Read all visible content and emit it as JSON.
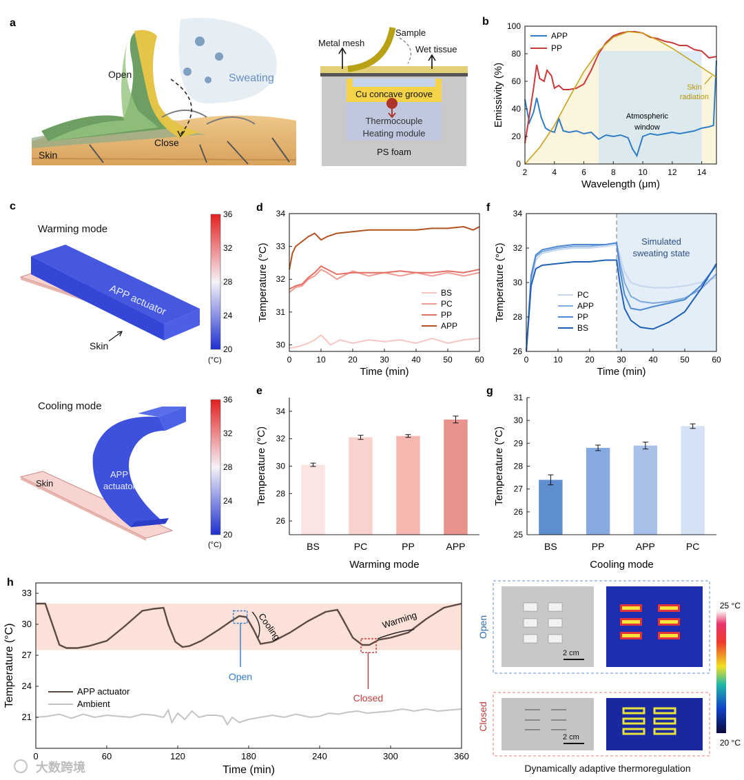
{
  "panel_letters": [
    "a",
    "b",
    "c",
    "d",
    "e",
    "f",
    "g",
    "h"
  ],
  "panel_a": {
    "left": {
      "open": "Open",
      "close": "Close",
      "skin": "Skin",
      "sweating": "Sweating"
    },
    "right": {
      "metal_mesh": "Metal mesh",
      "sample": "Sample",
      "wet_tissue": "Wet tissue",
      "groove": "Cu concave groove",
      "thermocouple": "Thermocouple",
      "heating": "Heating module",
      "foam": "PS foam"
    }
  },
  "panel_c": {
    "warming_title": "Warming mode",
    "cooling_title": "Cooling mode",
    "actuator_label": "APP actuator",
    "actuator_line1": "APP",
    "actuator_line2": "actuator",
    "skin": "Skin",
    "colorbar_ticks": [
      "36",
      "32",
      "28",
      "24",
      "20"
    ],
    "colorbar_unit": "(°C)"
  },
  "panel_h_photos": {
    "open": "Open",
    "closed": "Closed",
    "scale": "2 cm",
    "ir_max": "25 °C",
    "ir_min": "20 °C",
    "caption": "Dynamically adaptive thermoregulation"
  },
  "watermark": "大数跨境",
  "colors": {
    "app_blue": "#2f7cc6",
    "pp_red": "#c9393c",
    "skin_gold": "#c8a21a",
    "bs": "#f7c6c1",
    "pc": "#f09a92",
    "pp": "#e46f63",
    "app": "#b2501f",
    "h_actuator": "#5b4a43",
    "h_ambient": "#c4c4c4",
    "h_band": "#fbe1d8"
  },
  "chart_data": [
    {
      "id": "b",
      "type": "line",
      "xlabel": "Wavelength (μm)",
      "ylabel": "Emissivity (%)",
      "xlim": [
        2,
        15
      ],
      "ylim": [
        0,
        100
      ],
      "xticks": [
        2,
        4,
        6,
        8,
        10,
        12,
        14
      ],
      "yticks": [
        0,
        20,
        40,
        60,
        80,
        100
      ],
      "annotations": {
        "window": "Atmospheric window",
        "skin_line1": "Skin",
        "skin_line2": "radiation"
      },
      "legend": "top-left",
      "series": [
        {
          "name": "APP",
          "color": "#2f7cc6",
          "x": [
            2,
            2.3,
            2.6,
            2.8,
            3.1,
            3.4,
            3.7,
            4.0,
            4.3,
            4.6,
            5,
            5.5,
            6,
            6.5,
            7,
            7.5,
            8,
            8.5,
            9,
            9.3,
            9.6,
            10,
            10.5,
            11,
            11.5,
            12,
            12.5,
            13,
            13.5,
            14,
            14.5,
            14.8,
            15
          ],
          "y": [
            47,
            30,
            38,
            48,
            34,
            26,
            24,
            23,
            33,
            24,
            23,
            24,
            22,
            23,
            18,
            21,
            20,
            21,
            19,
            11,
            6,
            20,
            22,
            21,
            22,
            23,
            22,
            23,
            24,
            26,
            27,
            28,
            75
          ]
        },
        {
          "name": "PP",
          "color": "#c9393c",
          "x": [
            2,
            2.3,
            2.6,
            2.8,
            3.0,
            3.3,
            3.5,
            3.8,
            4.0,
            4.3,
            4.6,
            5,
            5.5,
            6,
            6.5,
            7,
            7.5,
            8,
            8.5,
            9,
            9.5,
            10,
            10.5,
            11,
            11.5,
            12,
            12.5,
            13,
            13.5,
            14,
            14.5,
            15
          ],
          "y": [
            15,
            35,
            56,
            72,
            62,
            60,
            68,
            64,
            55,
            57,
            54,
            54,
            55,
            58,
            68,
            80,
            88,
            93,
            95,
            96,
            96,
            95,
            92,
            91,
            89,
            88,
            86,
            86,
            83,
            82,
            77,
            78
          ]
        },
        {
          "name": "Skin radiation",
          "color": "#c8a21a",
          "x": [
            2,
            3,
            4,
            5,
            6,
            7,
            8,
            9,
            10,
            11,
            12,
            13,
            14,
            15
          ],
          "y": [
            0,
            12,
            28,
            48,
            67,
            82,
            92,
            96,
            95,
            90,
            84,
            77,
            70,
            63
          ]
        }
      ]
    },
    {
      "id": "d",
      "type": "line",
      "xlabel": "Time (min)",
      "ylabel": "Temperature (°C)",
      "xlim": [
        0,
        60
      ],
      "ylim": [
        29.8,
        34
      ],
      "xticks": [
        0,
        10,
        20,
        30,
        40,
        50,
        60
      ],
      "yticks": [
        30,
        31,
        32,
        33,
        34
      ],
      "legend": "bottom-right",
      "series": [
        {
          "name": "BS",
          "color": "#f7c6c1",
          "x": [
            0,
            3,
            6,
            8,
            10,
            13,
            16,
            20,
            25,
            30,
            35,
            40,
            45,
            50,
            55,
            60
          ],
          "y": [
            29.9,
            29.95,
            30.05,
            30.15,
            30.3,
            30.0,
            30.15,
            30.05,
            30.15,
            30.1,
            30.15,
            30.05,
            30.2,
            30.05,
            30.15,
            30.2
          ]
        },
        {
          "name": "PC",
          "color": "#f09a92",
          "x": [
            0,
            2,
            4,
            6,
            8,
            10,
            12,
            15,
            20,
            25,
            30,
            35,
            40,
            45,
            50,
            55,
            60
          ],
          "y": [
            31.6,
            31.75,
            31.8,
            32.0,
            32.1,
            32.3,
            32.2,
            32.0,
            32.25,
            32.1,
            32.2,
            32.1,
            32.2,
            32.1,
            32.2,
            32.1,
            32.2
          ]
        },
        {
          "name": "PP",
          "color": "#e46f63",
          "x": [
            0,
            2,
            4,
            6,
            8,
            10,
            12,
            15,
            20,
            25,
            30,
            35,
            40,
            45,
            50,
            55,
            60
          ],
          "y": [
            31.7,
            31.8,
            31.85,
            32.05,
            32.2,
            32.4,
            32.3,
            32.15,
            32.2,
            32.2,
            32.2,
            32.25,
            32.2,
            32.2,
            32.25,
            32.2,
            32.3
          ]
        },
        {
          "name": "APP",
          "color": "#b2501f",
          "x": [
            0,
            1,
            2,
            4,
            6,
            8,
            10,
            12,
            15,
            20,
            25,
            30,
            35,
            40,
            45,
            50,
            55,
            58,
            60
          ],
          "y": [
            32.3,
            32.8,
            33.0,
            33.15,
            33.3,
            33.4,
            33.2,
            33.3,
            33.4,
            33.45,
            33.5,
            33.5,
            33.5,
            33.5,
            33.55,
            33.55,
            33.6,
            33.5,
            33.6
          ]
        }
      ]
    },
    {
      "id": "e",
      "type": "bar",
      "xlabel": "Warming mode",
      "ylabel": "Temperature (°C)",
      "ylim": [
        25,
        35
      ],
      "yticks": [
        26,
        28,
        30,
        32,
        34
      ],
      "categories": [
        "BS",
        "PC",
        "PP",
        "APP"
      ],
      "values": [
        30.1,
        32.1,
        32.2,
        33.4
      ],
      "errors": [
        0.12,
        0.15,
        0.1,
        0.25
      ],
      "colors": [
        "#fbe5e3",
        "#fad2cd",
        "#f6b7b0",
        "#e8938c"
      ]
    },
    {
      "id": "f",
      "type": "line",
      "xlabel": "Time (min)",
      "ylabel": "Temperature (°C)",
      "xlim": [
        0,
        60
      ],
      "ylim": [
        26,
        34
      ],
      "xticks": [
        0,
        10,
        20,
        30,
        40,
        50,
        60
      ],
      "yticks": [
        26,
        28,
        30,
        32,
        34
      ],
      "annotations": {
        "state_line1": "Simulated",
        "state_line2": "sweating state",
        "switch_x": 28.5
      },
      "legend": "bottom-left",
      "series": [
        {
          "name": "PC",
          "color": "#c5d7ef",
          "x": [
            0,
            0.8,
            1.5,
            3,
            5,
            10,
            15,
            20,
            25,
            28.5,
            29.5,
            31,
            33,
            36,
            40,
            45,
            50,
            55,
            60
          ],
          "y": [
            26,
            28,
            30,
            31.3,
            31.7,
            31.9,
            32.0,
            32.0,
            32.1,
            32.2,
            31.6,
            30.6,
            30.0,
            29.8,
            29.7,
            29.7,
            29.8,
            30.0,
            30.3
          ]
        },
        {
          "name": "APP",
          "color": "#7fa8dd",
          "x": [
            0,
            0.8,
            1.5,
            3,
            5,
            10,
            15,
            20,
            25,
            28.5,
            29.5,
            31,
            33,
            36,
            40,
            45,
            50,
            55,
            60
          ],
          "y": [
            26,
            28.2,
            30.2,
            31.5,
            31.8,
            32.0,
            32.1,
            32.1,
            32.2,
            32.3,
            31.2,
            30.0,
            29.2,
            28.9,
            28.8,
            28.9,
            29.1,
            29.6,
            30.5
          ]
        },
        {
          "name": "PP",
          "color": "#4d88d2",
          "x": [
            0,
            0.8,
            1.5,
            3,
            5,
            10,
            15,
            20,
            25,
            28.5,
            29.5,
            31,
            33,
            36,
            40,
            45,
            50,
            55,
            60
          ],
          "y": [
            26,
            28.3,
            30.4,
            31.6,
            31.9,
            32.1,
            32.2,
            32.2,
            32.2,
            32.3,
            30.8,
            29.3,
            28.5,
            28.4,
            28.6,
            28.8,
            29.0,
            29.8,
            31.0
          ]
        },
        {
          "name": "BS",
          "color": "#1f5fb5",
          "x": [
            0,
            0.8,
            1.5,
            3,
            5,
            10,
            15,
            20,
            25,
            28.5,
            29.5,
            31,
            33,
            36,
            40,
            45,
            50,
            55,
            60
          ],
          "y": [
            26,
            28,
            29.8,
            30.8,
            31.0,
            31.1,
            31.2,
            31.2,
            31.3,
            31.3,
            30.0,
            28.5,
            27.8,
            27.4,
            27.3,
            27.7,
            28.3,
            29.6,
            31.1
          ]
        }
      ]
    },
    {
      "id": "g",
      "type": "bar",
      "xlabel": "Cooling mode",
      "ylabel": "Temperature (°C)",
      "ylim": [
        25,
        31
      ],
      "yticks": [
        25,
        26,
        27,
        28,
        29,
        30,
        31
      ],
      "categories": [
        "BS",
        "PP",
        "APP",
        "PC"
      ],
      "values": [
        27.4,
        28.8,
        28.9,
        29.75
      ],
      "errors": [
        0.22,
        0.12,
        0.15,
        0.1
      ],
      "colors": [
        "#5f8ed0",
        "#86a9df",
        "#a9c1e8",
        "#d5e1f4"
      ]
    },
    {
      "id": "h",
      "type": "line",
      "xlabel": "Time (min)",
      "ylabel": "Temperature (°C)",
      "xlim": [
        0,
        360
      ],
      "ylim": [
        18,
        34
      ],
      "xticks": [
        0,
        60,
        120,
        180,
        240,
        300,
        360
      ],
      "yticks": [
        21,
        24,
        27,
        30,
        33
      ],
      "band": [
        27.5,
        32
      ],
      "annotations": {
        "open": "Open",
        "closed": "Closed",
        "cooling": "Cooling",
        "warming": "Warming"
      },
      "legend": "bottom-left",
      "series": [
        {
          "name": "APP actuator",
          "color": "#5b4a43",
          "x": [
            0,
            8,
            14,
            20,
            26,
            35,
            45,
            60,
            75,
            90,
            100,
            108,
            112,
            118,
            124,
            130,
            140,
            155,
            165,
            172,
            178,
            184,
            190,
            200,
            215,
            230,
            245,
            255,
            260,
            268,
            276,
            282,
            290,
            300,
            315,
            330,
            345,
            360
          ],
          "y": [
            32,
            32,
            30,
            28,
            27.7,
            27.7,
            27.9,
            28.4,
            29.8,
            31.3,
            31.5,
            31.6,
            30,
            28.3,
            27.8,
            27.9,
            28.4,
            29.5,
            30.3,
            30.8,
            30.7,
            29.5,
            28.1,
            28.3,
            29.2,
            30.3,
            31.2,
            31.4,
            30.4,
            28.7,
            28.0,
            28.0,
            28.5,
            28.7,
            29.2,
            30.5,
            31.6,
            32
          ]
        },
        {
          "name": "Ambient",
          "color": "#c4c4c4",
          "x": [
            0,
            10,
            20,
            30,
            40,
            50,
            60,
            70,
            80,
            90,
            100,
            108,
            112,
            115,
            120,
            126,
            132,
            138,
            145,
            152,
            158,
            162,
            166,
            172,
            180,
            190,
            200,
            210,
            220,
            232,
            240,
            248,
            256,
            264,
            272,
            280,
            290,
            300,
            310,
            320,
            330,
            340,
            350,
            360
          ],
          "y": [
            21.0,
            21.1,
            21.3,
            20.9,
            21.3,
            21.0,
            21.2,
            21.1,
            21.0,
            21.3,
            21.2,
            21.0,
            21.7,
            20.5,
            21.4,
            20.8,
            21.6,
            21.0,
            21.2,
            21.2,
            21.1,
            20.3,
            21.0,
            20.5,
            20.8,
            21.0,
            21.2,
            21.0,
            21.3,
            21.0,
            21.1,
            21.4,
            21.3,
            21.5,
            21.6,
            21.4,
            21.5,
            21.6,
            21.8,
            21.6,
            21.8,
            21.6,
            21.7,
            21.8
          ]
        }
      ]
    }
  ]
}
